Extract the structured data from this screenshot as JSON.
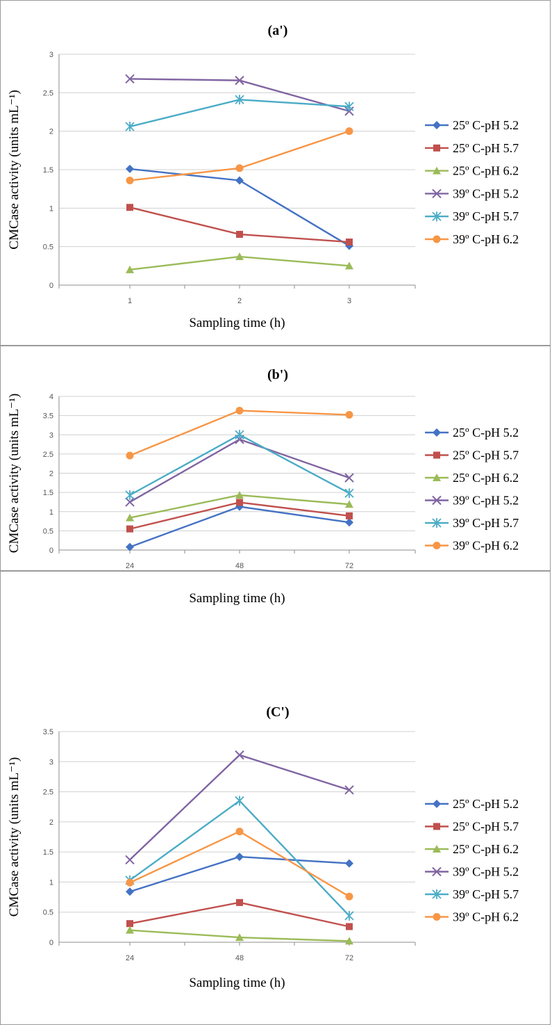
{
  "chart_data": [
    {
      "type": "line",
      "title": "(a')",
      "xlabel": "Sampling time (h)",
      "ylabel": "CMCase activity (units mL⁻¹)",
      "categories": [
        "1",
        "2",
        "3"
      ],
      "ylim": [
        0,
        3
      ],
      "yticks": [
        0,
        0.5,
        1,
        1.5,
        2,
        2.5,
        3
      ],
      "ytick_labels": [
        "0",
        "0.5",
        "1",
        "1.5",
        "2",
        "2.5",
        "3"
      ],
      "grid": "horizontal",
      "legend": "right",
      "series": [
        {
          "name": "25º C-pH 5.2",
          "color": "#4472c4",
          "marker": "diamond",
          "values": [
            1.51,
            1.36,
            0.51
          ]
        },
        {
          "name": "25º C-pH 5.7",
          "color": "#c0504d",
          "marker": "square",
          "values": [
            1.01,
            0.66,
            0.56
          ]
        },
        {
          "name": "25º C-pH 6.2",
          "color": "#9bbb59",
          "marker": "triangle",
          "values": [
            0.2,
            0.37,
            0.25
          ]
        },
        {
          "name": "39º C-pH 5.2",
          "color": "#8064a2",
          "marker": "x",
          "values": [
            2.68,
            2.66,
            2.26
          ]
        },
        {
          "name": "39º C-pH 5.7",
          "color": "#4bacc6",
          "marker": "star",
          "values": [
            2.06,
            2.41,
            2.32
          ]
        },
        {
          "name": "39º C-pH 6.2",
          "color": "#f79646",
          "marker": "circle",
          "values": [
            1.36,
            1.52,
            2.0
          ]
        }
      ]
    },
    {
      "type": "line",
      "title": "(b')",
      "xlabel": "Sampling time (h)",
      "ylabel": "CMCase activity (units mL⁻¹)",
      "categories": [
        "24",
        "48",
        "72"
      ],
      "ylim": [
        0,
        4
      ],
      "yticks": [
        0,
        0.5,
        1,
        1.5,
        2,
        2.5,
        3,
        3.5,
        4
      ],
      "ytick_labels": [
        "0",
        "0.5",
        "1",
        "1.5",
        "2",
        "2.5",
        "3",
        "3.5",
        "4"
      ],
      "grid": "horizontal",
      "legend": "right",
      "series": [
        {
          "name": "25º C-pH 5.2",
          "color": "#4472c4",
          "marker": "diamond",
          "values": [
            0.08,
            1.13,
            0.72
          ]
        },
        {
          "name": "25º C-pH 5.7",
          "color": "#c0504d",
          "marker": "square",
          "values": [
            0.55,
            1.24,
            0.89
          ]
        },
        {
          "name": "25º C-pH 6.2",
          "color": "#9bbb59",
          "marker": "triangle",
          "values": [
            0.84,
            1.43,
            1.19
          ]
        },
        {
          "name": "39º C-pH 5.2",
          "color": "#8064a2",
          "marker": "x",
          "values": [
            1.25,
            2.88,
            1.88
          ]
        },
        {
          "name": "39º C-pH 5.7",
          "color": "#4bacc6",
          "marker": "star",
          "values": [
            1.43,
            3.0,
            1.48
          ]
        },
        {
          "name": "39º C-pH 6.2",
          "color": "#f79646",
          "marker": "circle",
          "values": [
            2.46,
            3.63,
            3.52
          ]
        }
      ]
    },
    {
      "type": "line",
      "title": "(C')",
      "xlabel": "Sampling time (h)",
      "ylabel": "CMCase activity (units mL⁻¹)",
      "categories": [
        "24",
        "48",
        "72"
      ],
      "ylim": [
        0,
        3.5
      ],
      "yticks": [
        0,
        0.5,
        1,
        1.5,
        2,
        2.5,
        3,
        3.5
      ],
      "ytick_labels": [
        "0",
        "0.5",
        "1",
        "1.5",
        "2",
        "2.5",
        "3",
        "3.5"
      ],
      "grid": "horizontal",
      "legend": "right",
      "series": [
        {
          "name": "25º C-pH 5.2",
          "color": "#4472c4",
          "marker": "diamond",
          "values": [
            0.84,
            1.42,
            1.31
          ]
        },
        {
          "name": "25º C-pH 5.7",
          "color": "#c0504d",
          "marker": "square",
          "values": [
            0.31,
            0.66,
            0.26
          ]
        },
        {
          "name": "25º C-pH 6.2",
          "color": "#9bbb59",
          "marker": "triangle",
          "values": [
            0.2,
            0.08,
            0.02
          ]
        },
        {
          "name": "39º C-pH 5.2",
          "color": "#8064a2",
          "marker": "x",
          "values": [
            1.37,
            3.11,
            2.53
          ]
        },
        {
          "name": "39º C-pH 5.7",
          "color": "#4bacc6",
          "marker": "star",
          "values": [
            1.03,
            2.35,
            0.44
          ]
        },
        {
          "name": "39º C-pH 6.2",
          "color": "#f79646",
          "marker": "circle",
          "values": [
            0.99,
            1.84,
            0.76
          ]
        }
      ]
    }
  ]
}
